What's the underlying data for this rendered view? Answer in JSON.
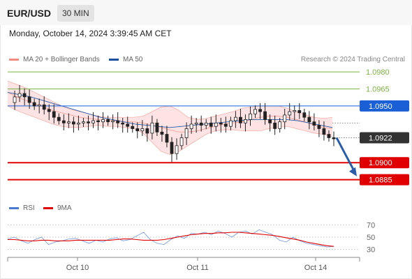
{
  "header": {
    "symbol": "EUR/USD",
    "timeframe": "30 MIN",
    "datetime": "Monday, October 14, 2024 3:39:45 AM CET"
  },
  "legend": {
    "bollinger": {
      "label": "MA 20 + Bollinger Bands",
      "color": "#f28b82"
    },
    "ma50": {
      "label": "MA 50",
      "color": "#1a4e9c"
    },
    "credit": "Research © 2024 Trading Central"
  },
  "rsi_legend": {
    "rsi": {
      "label": "RSI",
      "color": "#4a7bd0"
    },
    "ma": {
      "label": "9MA",
      "color": "#e00000"
    }
  },
  "chart_data": [
    {
      "type": "candlestick",
      "ylim": [
        1.087,
        1.0985
      ],
      "x_ticks": [
        "Oct 10",
        "Oct 11",
        "Oct 14"
      ],
      "levels": [
        {
          "value": 1.098,
          "label": "1.0980",
          "color": "#7cb342",
          "style": "line"
        },
        {
          "value": 1.0965,
          "label": "1.0965",
          "color": "#7cb342",
          "style": "line"
        },
        {
          "value": 1.095,
          "label": "1.0950",
          "color": "#1a5fd6",
          "style": "badge"
        },
        {
          "value": 1.0922,
          "label": "1.0922",
          "color": "#333333",
          "style": "badge"
        },
        {
          "value": 1.09,
          "label": "1.0900",
          "color": "#e00000",
          "style": "badge"
        },
        {
          "value": 1.0885,
          "label": "1.0885",
          "color": "#e00000",
          "style": "badge"
        }
      ],
      "price_path": [
        1.0953,
        1.0958,
        1.0961,
        1.0958,
        1.0953,
        1.095,
        1.0951,
        1.0947,
        1.0945,
        1.094,
        1.0937,
        1.0935,
        1.0936,
        1.0934,
        1.0935,
        1.0936,
        1.0935,
        1.0937,
        1.0936,
        1.0938,
        1.0936,
        1.0937,
        1.0935,
        1.0934,
        1.0932,
        1.093,
        1.0928,
        1.093,
        1.0926,
        1.0935,
        1.0927,
        1.0925,
        1.0918,
        1.0908,
        1.0915,
        1.0922,
        1.093,
        1.0934,
        1.0935,
        1.0933,
        1.0935,
        1.0932,
        1.0935,
        1.0934,
        1.0932,
        1.0937,
        1.094,
        1.0935,
        1.0938,
        1.0943,
        1.0947,
        1.0945,
        1.0938,
        1.0935,
        1.093,
        1.0936,
        1.0942,
        1.0945,
        1.0946,
        1.0944,
        1.094,
        1.0936,
        1.0933,
        1.093,
        1.0925,
        1.0922,
        1.0921
      ],
      "ma20_bb": {
        "mid": [
          1.0962,
          1.0958,
          1.0955,
          1.0952,
          1.0949,
          1.0946,
          1.0944,
          1.0942,
          1.094,
          1.0939,
          1.0938,
          1.0937,
          1.0937,
          1.0936,
          1.0936,
          1.0935,
          1.0933,
          1.0931,
          1.0929,
          1.0927,
          1.0927,
          1.0928,
          1.093,
          1.0932,
          1.0934,
          1.0935,
          1.0936,
          1.0938,
          1.094,
          1.0941,
          1.0941,
          1.094,
          1.0938,
          1.0936,
          1.0933,
          1.0931,
          1.093
        ],
        "upper": [
          1.0972,
          1.0969,
          1.0966,
          1.0962,
          1.0958,
          1.0954,
          1.095,
          1.0947,
          1.0945,
          1.0943,
          1.0941,
          1.094,
          1.094,
          1.094,
          1.094,
          1.0941,
          1.0945,
          1.0949,
          1.095,
          1.0946,
          1.094,
          1.0938,
          1.0939,
          1.0941,
          1.0943,
          1.0945,
          1.0948,
          1.0949,
          1.095,
          1.095,
          1.095,
          1.0948,
          1.0945,
          1.0942,
          1.094,
          1.0939,
          1.094
        ],
        "lower": [
          1.095,
          1.0946,
          1.0943,
          1.094,
          1.0937,
          1.0934,
          1.0932,
          1.0931,
          1.0931,
          1.0932,
          1.0933,
          1.0932,
          1.0932,
          1.0931,
          1.093,
          1.0926,
          1.0918,
          1.091,
          1.0907,
          1.091,
          1.0915,
          1.092,
          1.0925,
          1.0928,
          1.0929,
          1.0929,
          1.0928,
          1.0928,
          1.0928,
          1.093,
          1.0931,
          1.0932,
          1.093,
          1.0928,
          1.0926,
          1.0925,
          1.0923
        ]
      },
      "ma50": [
        1.0962,
        1.096,
        1.0958,
        1.0955,
        1.0952,
        1.0949,
        1.0946,
        1.0943,
        1.094,
        1.0938,
        1.0936,
        1.0934,
        1.0933,
        1.0932,
        1.0931,
        1.0932,
        1.0933,
        1.0934,
        1.0935,
        1.0936,
        1.0937,
        1.0938,
        1.0938,
        1.0938,
        1.0938,
        1.0937,
        1.0935,
        1.0933,
        1.0931
      ],
      "forecast": {
        "from": 1.0922,
        "to": 1.0888
      }
    },
    {
      "type": "line",
      "title": "RSI",
      "ylim": [
        25,
        75
      ],
      "ticks": [
        70,
        50,
        30
      ],
      "series": [
        {
          "name": "RSI",
          "values": [
            47,
            50,
            44,
            40,
            46,
            50,
            38,
            42,
            44,
            47,
            48,
            44,
            40,
            45,
            42,
            47,
            49,
            44,
            46,
            52,
            58,
            46,
            40,
            38,
            46,
            52,
            48,
            56,
            55,
            58,
            54,
            60,
            56,
            50,
            58,
            60,
            55,
            62,
            58,
            54,
            45,
            42,
            50,
            44,
            40,
            38,
            36,
            34,
            35
          ]
        },
        {
          "name": "9MA",
          "values": [
            46,
            46,
            45,
            44,
            44,
            45,
            45,
            44,
            44,
            44,
            45,
            45,
            45,
            45,
            45,
            45,
            46,
            47,
            47,
            46,
            45,
            45,
            45,
            46,
            48,
            50,
            52,
            54,
            55,
            56,
            56,
            57,
            57,
            58,
            58,
            57,
            56,
            55,
            54,
            53,
            51,
            49,
            47,
            45,
            42,
            40,
            38,
            36,
            35
          ]
        }
      ]
    }
  ]
}
